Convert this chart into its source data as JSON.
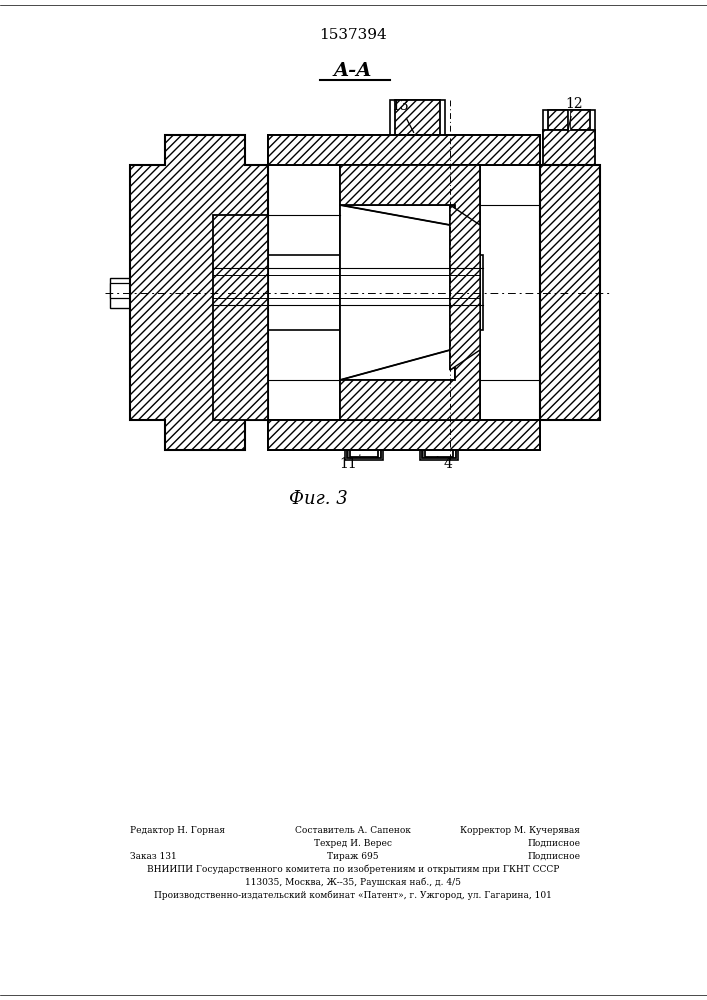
{
  "patent_number": "1537394",
  "section_label": "A-A",
  "fig_label": "Фиг. 3",
  "line_color": "#000000",
  "bg_color": "#ffffff",
  "footer_editor": "Редактор Н. Горная",
  "footer_composer": "Составитель А. Сапенок",
  "footer_tech": "Техред И. Верес",
  "footer_corrector": "Корректор М. Кучерявая",
  "footer_order": "Заказ 131",
  "footer_tirazh": "Тираж 695",
  "footer_podp": "Подписное",
  "footer_vniipи": "ВНИИПИ Государственного комитета по изобретениям и открытиям при ГКНТ СССР",
  "footer_addr": "113035, Москва, Ж--35, Раушская наб., д. 4/5",
  "footer_patent": "Производственно-издательский комбинат «Патент», г. Ужгород, ул. Гагарина, 101"
}
